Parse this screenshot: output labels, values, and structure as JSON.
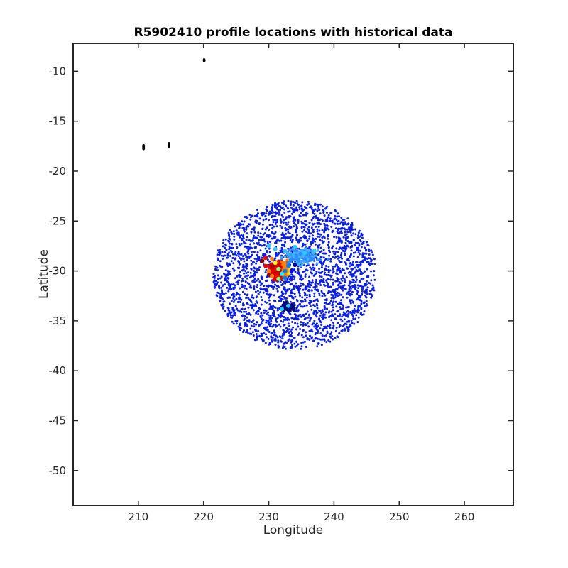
{
  "chart_data": {
    "type": "scatter",
    "title": "R5902410 profile locations with historical data",
    "xlabel": "Longitude",
    "ylabel": "Latitude",
    "xlim": [
      200,
      267.5
    ],
    "ylim": [
      -53.5,
      -7.2
    ],
    "xticks": [
      210,
      220,
      230,
      240,
      250,
      260
    ],
    "yticks": [
      -10,
      -15,
      -20,
      -25,
      -30,
      -35,
      -40,
      -45,
      -50
    ],
    "grid": false,
    "legend": "none",
    "colors": {
      "historical_blue": "#0a1ee6",
      "profile_black": "#000000",
      "colormap": [
        "#00008f",
        "#0000ff",
        "#0080ff",
        "#00ffff",
        "#80ff80",
        "#ffff00",
        "#ff8000",
        "#ff0000",
        "#800000"
      ]
    },
    "series": [
      {
        "x": [
          220.1,
          210.8,
          210.8,
          214.7,
          214.7
        ],
        "y": [
          -8.9,
          -17.5,
          -17.7,
          -17.3,
          -17.5
        ]
      },
      {
        "region": {
          "x_range": [
            221.5,
            246.5
          ],
          "y_range": [
            -37.8,
            -22.9
          ],
          "center": [
            234.0,
            -30.4
          ]
        }
      },
      {
        "x": [
          230.0,
          231.0,
          232.5,
          234.0,
          235.5,
          237.0,
          233.0,
          232.0
        ],
        "y": [
          -27.5,
          -27.8,
          -28.0,
          -27.6,
          -28.2,
          -28.0,
          -33.5,
          -33.8
        ]
      },
      {
        "x": [
          229.0,
          229.5,
          230.0,
          230.5,
          231.0,
          231.5,
          232.0,
          232.5,
          233.0,
          233.5,
          234.0,
          229.5,
          230.5,
          231.5,
          232.5
        ],
        "y": [
          -29.0,
          -29.5,
          -30.0,
          -30.5,
          -29.2,
          -29.8,
          -30.3,
          -30.0,
          -29.5,
          -30.0,
          -29.4,
          -28.7,
          -28.8,
          -30.8,
          -30.7
        ]
      }
    ]
  }
}
